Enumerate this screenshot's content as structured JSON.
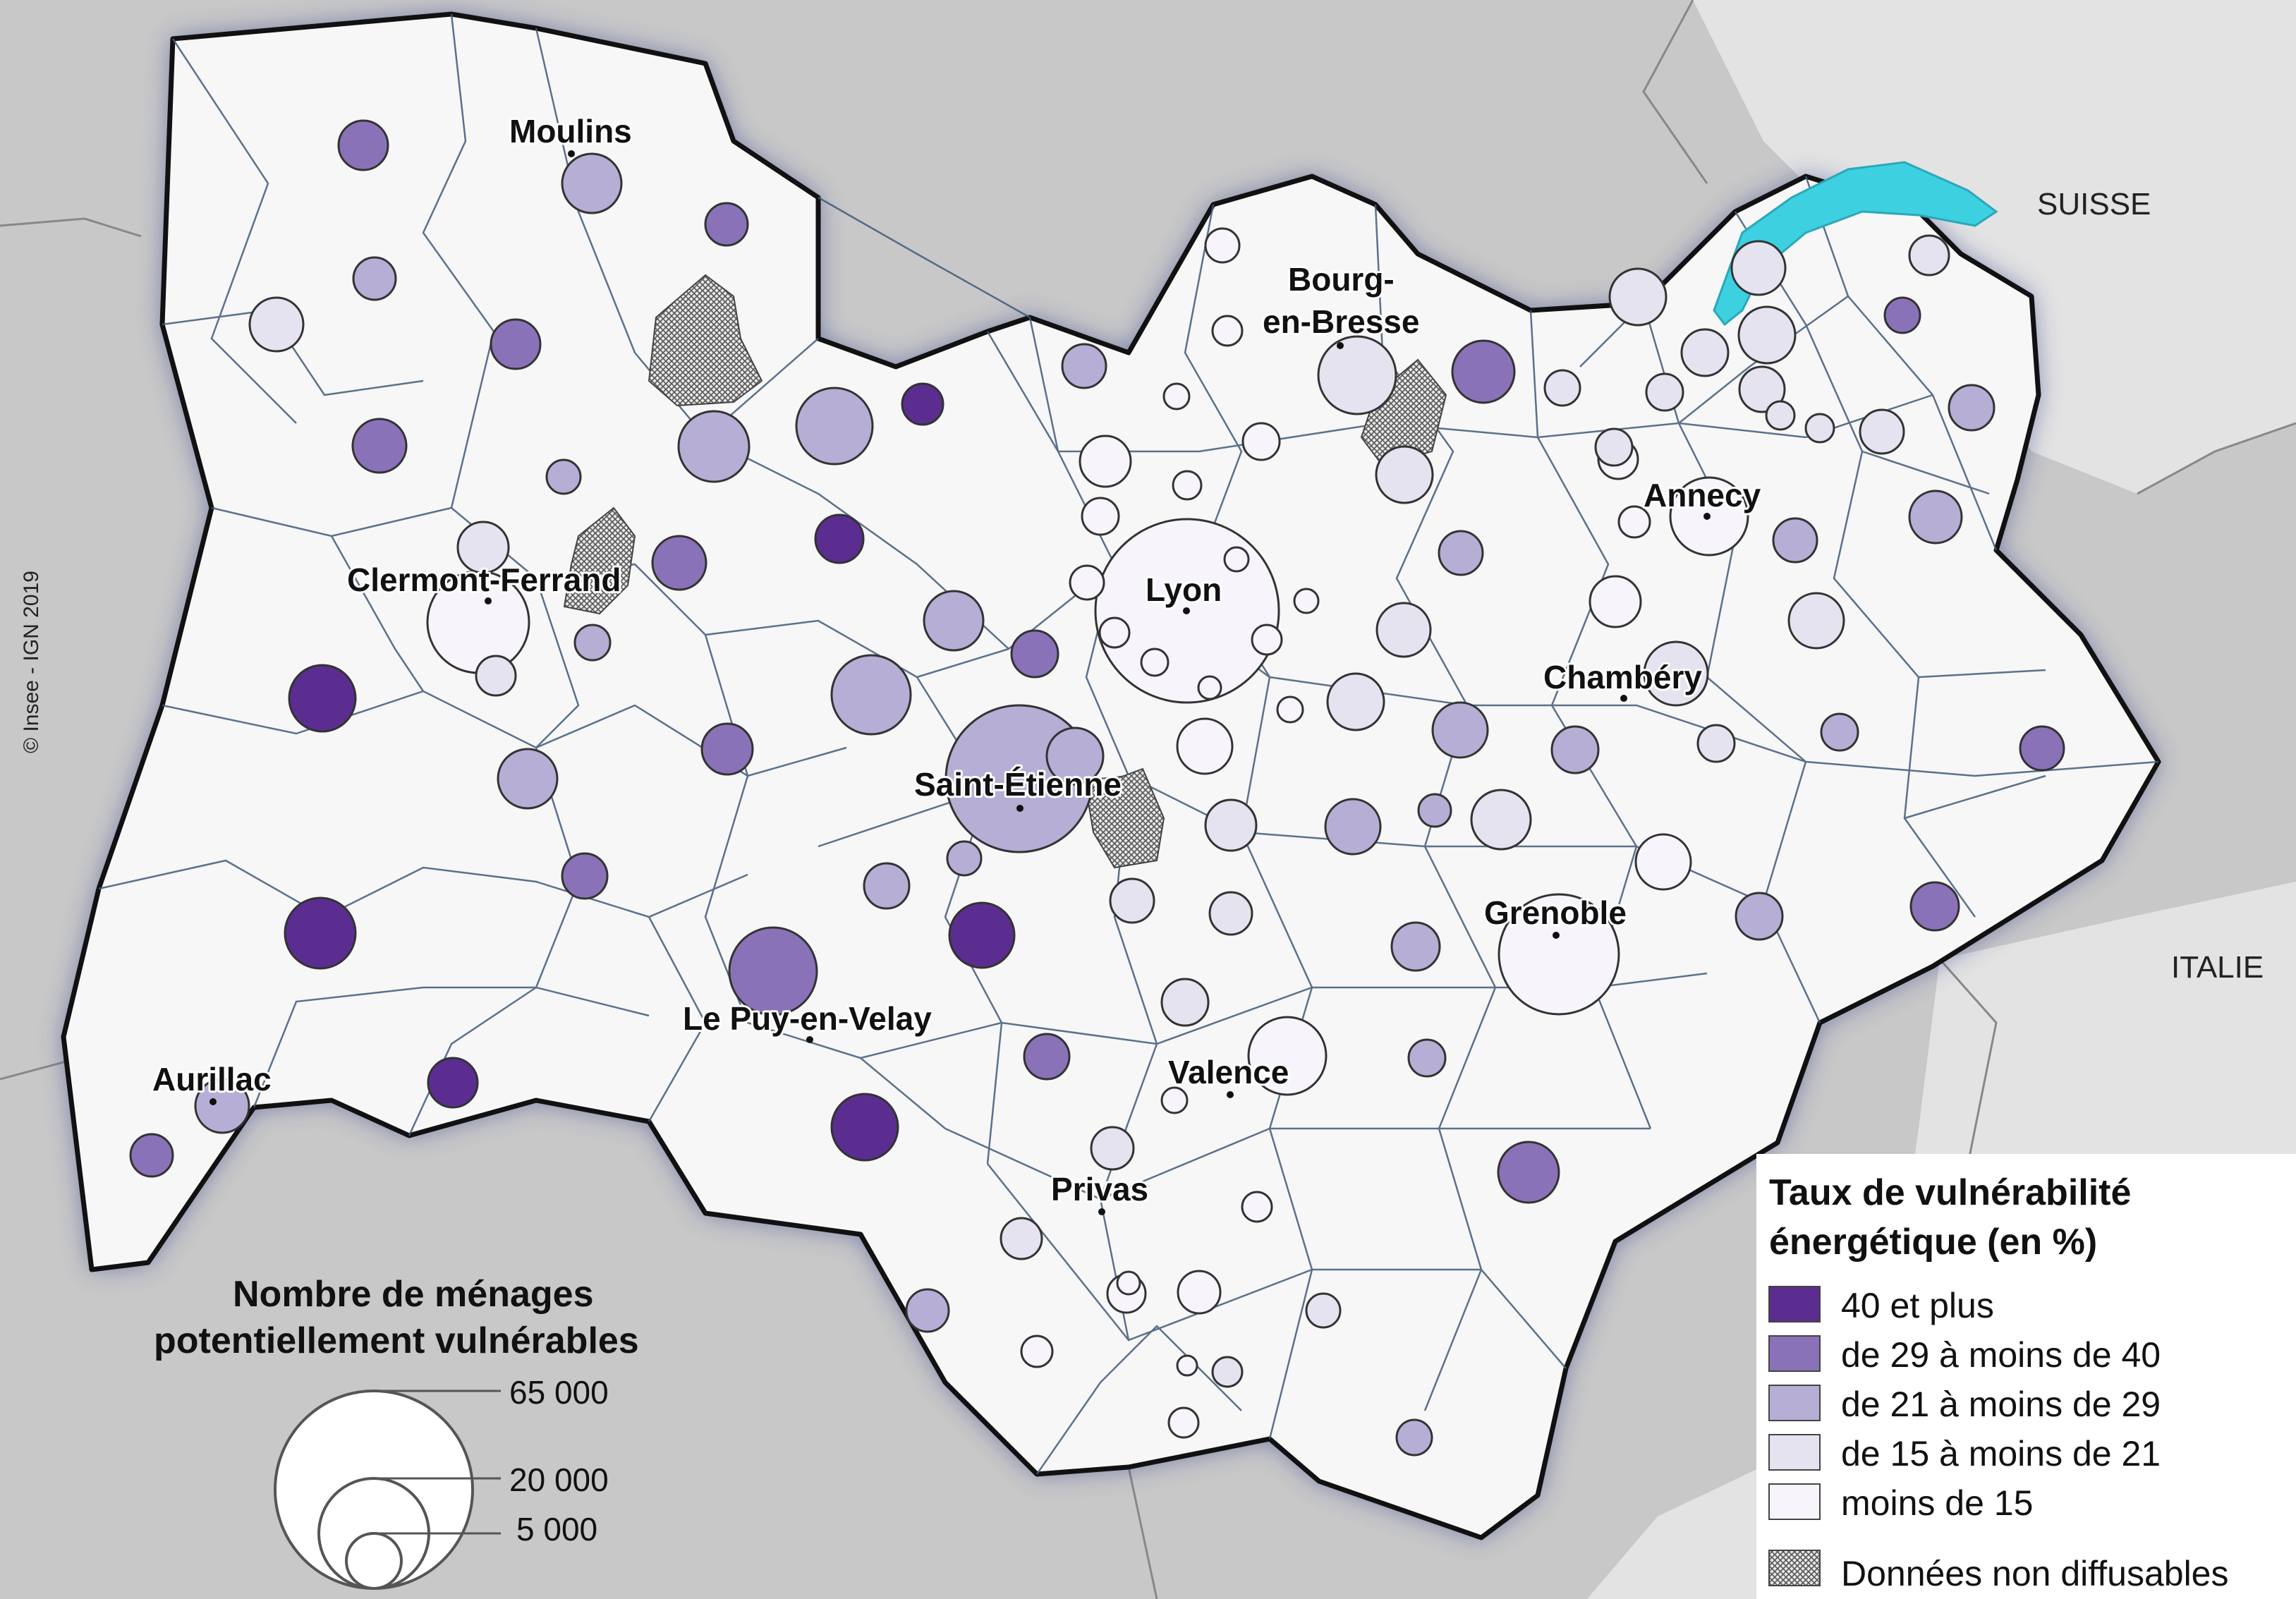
{
  "credit": "© Insee - IGN 2019",
  "countries": {
    "switzerland": "SUISSE",
    "italy": "ITALIE"
  },
  "cities": {
    "moulins": "Moulins",
    "bourg": [
      "Bourg-",
      "en-Bresse"
    ],
    "annecy": "Annecy",
    "lyon": "Lyon",
    "clermont": "Clermont-Ferrand",
    "chambery": "Chambéry",
    "saint_etienne": "Saint-Étienne",
    "grenoble": "Grenoble",
    "le_puy": "Le Puy-en-Velay",
    "aurillac": "Aurillac",
    "valence": "Valence",
    "privas": "Privas"
  },
  "size_legend": {
    "title": [
      "Nombre de ménages",
      "potentiellement vulnérables"
    ],
    "values": [
      "65 000",
      "20 000",
      "5 000"
    ]
  },
  "rate_legend": {
    "title": [
      "Taux de vulnérabilité",
      "énergétique (en %)"
    ],
    "classes": [
      {
        "label": "40 et plus",
        "color": "#5b2d90"
      },
      {
        "label": "de 29 à moins de 40",
        "color": "#8a72b8"
      },
      {
        "label": "de 21 à moins de 29",
        "color": "#b7aed6"
      },
      {
        "label": "de 15 à moins de 21",
        "color": "#e4e3ef"
      },
      {
        "label": "moins de 15",
        "color": "#f7f5fb"
      }
    ],
    "confidential": "Données non diffusables"
  },
  "colors": {
    "background": "#c8c8c8",
    "region_fill": "#f7f7f7",
    "region_border": "#111111",
    "boundary": "#3f5a7a",
    "lake": "#3dd0e0",
    "glow": "#1a2a6a"
  }
}
